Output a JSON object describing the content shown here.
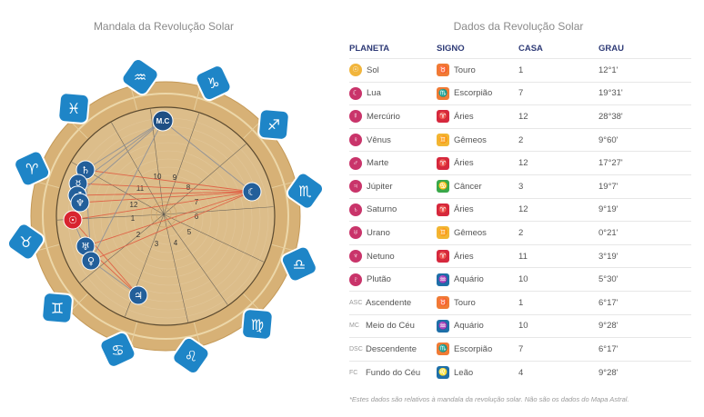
{
  "left_title": "Mandala da Revolução Solar",
  "right_title": "Dados da Revolução Solar",
  "headers": [
    "PLANETA",
    "SIGNO",
    "CASA",
    "GRAU"
  ],
  "colors": {
    "header": "#2f3b77",
    "wheel_outer": "#d7b176",
    "wheel_inner": "#dcbd8a",
    "sign_badge": "#1e85c7",
    "planet_badge": "#235f9a",
    "aspect_red": "#e05a40",
    "aspect_grey": "#8a8f99"
  },
  "rows": [
    {
      "planet": "Sol",
      "picon": "sun-icon",
      "pglyph": "☉",
      "pcolor": "#f1b53c",
      "sign": "Touro",
      "sicon": "taurus-icon",
      "sglyph": "♉",
      "scolor": "#f07b35",
      "house": "1",
      "degree": "12°1'"
    },
    {
      "planet": "Lua",
      "picon": "moon-icon",
      "pglyph": "☾",
      "pcolor": "#c9346a",
      "sign": "Escorpião",
      "sicon": "scorpio-icon",
      "sglyph": "♏",
      "scolor": "#f07b35",
      "house": "7",
      "degree": "19°31'"
    },
    {
      "planet": "Mercúrio",
      "picon": "mercury-icon",
      "pglyph": "☿",
      "pcolor": "#c9346a",
      "sign": "Áries",
      "sicon": "aries-icon",
      "sglyph": "♈",
      "scolor": "#d6283d",
      "house": "12",
      "degree": "28°38'"
    },
    {
      "planet": "Vênus",
      "picon": "venus-icon",
      "pglyph": "♀",
      "pcolor": "#c9346a",
      "sign": "Gêmeos",
      "sicon": "gemini-icon",
      "sglyph": "♊",
      "scolor": "#f2b632",
      "house": "2",
      "degree": "9°60'"
    },
    {
      "planet": "Marte",
      "picon": "mars-icon",
      "pglyph": "♂",
      "pcolor": "#c9346a",
      "sign": "Áries",
      "sicon": "aries-icon",
      "sglyph": "♈",
      "scolor": "#d6283d",
      "house": "12",
      "degree": "17°27'"
    },
    {
      "planet": "Júpiter",
      "picon": "jupiter-icon",
      "pglyph": "♃",
      "pcolor": "#c9346a",
      "sign": "Câncer",
      "sicon": "cancer-icon",
      "sglyph": "♋",
      "scolor": "#3aa84a",
      "house": "3",
      "degree": "19°7'"
    },
    {
      "planet": "Saturno",
      "picon": "saturn-icon",
      "pglyph": "♄",
      "pcolor": "#c9346a",
      "sign": "Áries",
      "sicon": "aries-icon",
      "sglyph": "♈",
      "scolor": "#d6283d",
      "house": "12",
      "degree": "9°19'"
    },
    {
      "planet": "Urano",
      "picon": "uranus-icon",
      "pglyph": "♅",
      "pcolor": "#c9346a",
      "sign": "Gêmeos",
      "sicon": "gemini-icon",
      "sglyph": "♊",
      "scolor": "#f2b632",
      "house": "2",
      "degree": "0°21'"
    },
    {
      "planet": "Netuno",
      "picon": "neptune-icon",
      "pglyph": "♆",
      "pcolor": "#c9346a",
      "sign": "Áries",
      "sicon": "aries-icon",
      "sglyph": "♈",
      "scolor": "#d6283d",
      "house": "11",
      "degree": "3°19'"
    },
    {
      "planet": "Plutão",
      "picon": "pluto-icon",
      "pglyph": "♇",
      "pcolor": "#c9346a",
      "sign": "Aquário",
      "sicon": "aquarius-icon",
      "sglyph": "♒",
      "scolor": "#1e6fa8",
      "house": "10",
      "degree": "5°30'"
    },
    {
      "planet": "Ascendente",
      "abbr": "ASC",
      "sign": "Touro",
      "sicon": "taurus-icon",
      "sglyph": "♉",
      "scolor": "#f07b35",
      "house": "1",
      "degree": "6°17'"
    },
    {
      "planet": "Meio do Céu",
      "abbr": "MC",
      "sign": "Aquário",
      "sicon": "aquarius-icon",
      "sglyph": "♒",
      "scolor": "#1e6fa8",
      "house": "10",
      "degree": "9°28'"
    },
    {
      "planet": "Descendente",
      "abbr": "DSC",
      "sign": "Escorpião",
      "sicon": "scorpio-icon",
      "sglyph": "♏",
      "scolor": "#f07b35",
      "house": "7",
      "degree": "6°17'"
    },
    {
      "planet": "Fundo do Céu",
      "abbr": "FC",
      "sign": "Leão",
      "sicon": "leo-icon",
      "sglyph": "♌",
      "scolor": "#1e6fa8",
      "house": "4",
      "degree": "9°28'"
    }
  ],
  "wheel": {
    "signs": [
      {
        "name": "pisces-icon",
        "glyph": "♓"
      },
      {
        "name": "aquarius-icon",
        "glyph": "♒"
      },
      {
        "name": "capricorn-icon",
        "glyph": "♑"
      },
      {
        "name": "sagittarius-icon",
        "glyph": "♐"
      },
      {
        "name": "scorpio-icon",
        "glyph": "♏"
      },
      {
        "name": "libra-icon",
        "glyph": "♎"
      },
      {
        "name": "virgo-icon",
        "glyph": "♍"
      },
      {
        "name": "leo-icon",
        "glyph": "♌"
      },
      {
        "name": "cancer-icon",
        "glyph": "♋"
      },
      {
        "name": "gemini-icon",
        "glyph": "♊"
      },
      {
        "name": "taurus-icon",
        "glyph": "♉"
      },
      {
        "name": "aries-icon",
        "glyph": "♈"
      }
    ],
    "houses": [
      "1",
      "2",
      "3",
      "4",
      "5",
      "6",
      "7",
      "8",
      "9",
      "10",
      "11",
      "12"
    ],
    "mc_label": "M.C",
    "planets_on_wheel": [
      {
        "name": "saturn-icon",
        "glyph": "♄"
      },
      {
        "name": "mercury-icon",
        "glyph": "☿"
      },
      {
        "name": "mars-icon",
        "glyph": "♂"
      },
      {
        "name": "neptune-icon",
        "glyph": "♆"
      },
      {
        "name": "sun-icon",
        "glyph": "☉"
      },
      {
        "name": "uranus-icon",
        "glyph": "♅"
      },
      {
        "name": "venus-icon",
        "glyph": "♀"
      },
      {
        "name": "jupiter-icon",
        "glyph": "♃"
      },
      {
        "name": "moon-icon",
        "glyph": "☾"
      }
    ]
  },
  "footnote": "*Estes dados são relativos à mandala da revolução solar. Não são os dados do Mapa Astral."
}
